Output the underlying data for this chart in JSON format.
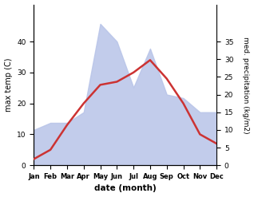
{
  "months": [
    "Jan",
    "Feb",
    "Mar",
    "Apr",
    "May",
    "Jun",
    "Jul",
    "Aug",
    "Sep",
    "Oct",
    "Nov",
    "Dec"
  ],
  "temperature": [
    2,
    5,
    13,
    20,
    26,
    27,
    30,
    34,
    28,
    20,
    10,
    7
  ],
  "precipitation": [
    10,
    12,
    12,
    15,
    40,
    35,
    22,
    33,
    20,
    19,
    15,
    15
  ],
  "temp_color": "#cc3333",
  "precip_fill_color": "#b8c4e8",
  "temp_ylim": [
    0,
    52
  ],
  "precip_ylim": [
    0,
    45.5
  ],
  "temp_yticks": [
    0,
    10,
    20,
    30,
    40
  ],
  "precip_yticks": [
    0,
    5,
    10,
    15,
    20,
    25,
    30,
    35
  ],
  "xlabel": "date (month)",
  "ylabel_left": "max temp (C)",
  "ylabel_right": "med. precipitation (kg/m2)",
  "background_color": "#ffffff",
  "line_width": 1.8
}
